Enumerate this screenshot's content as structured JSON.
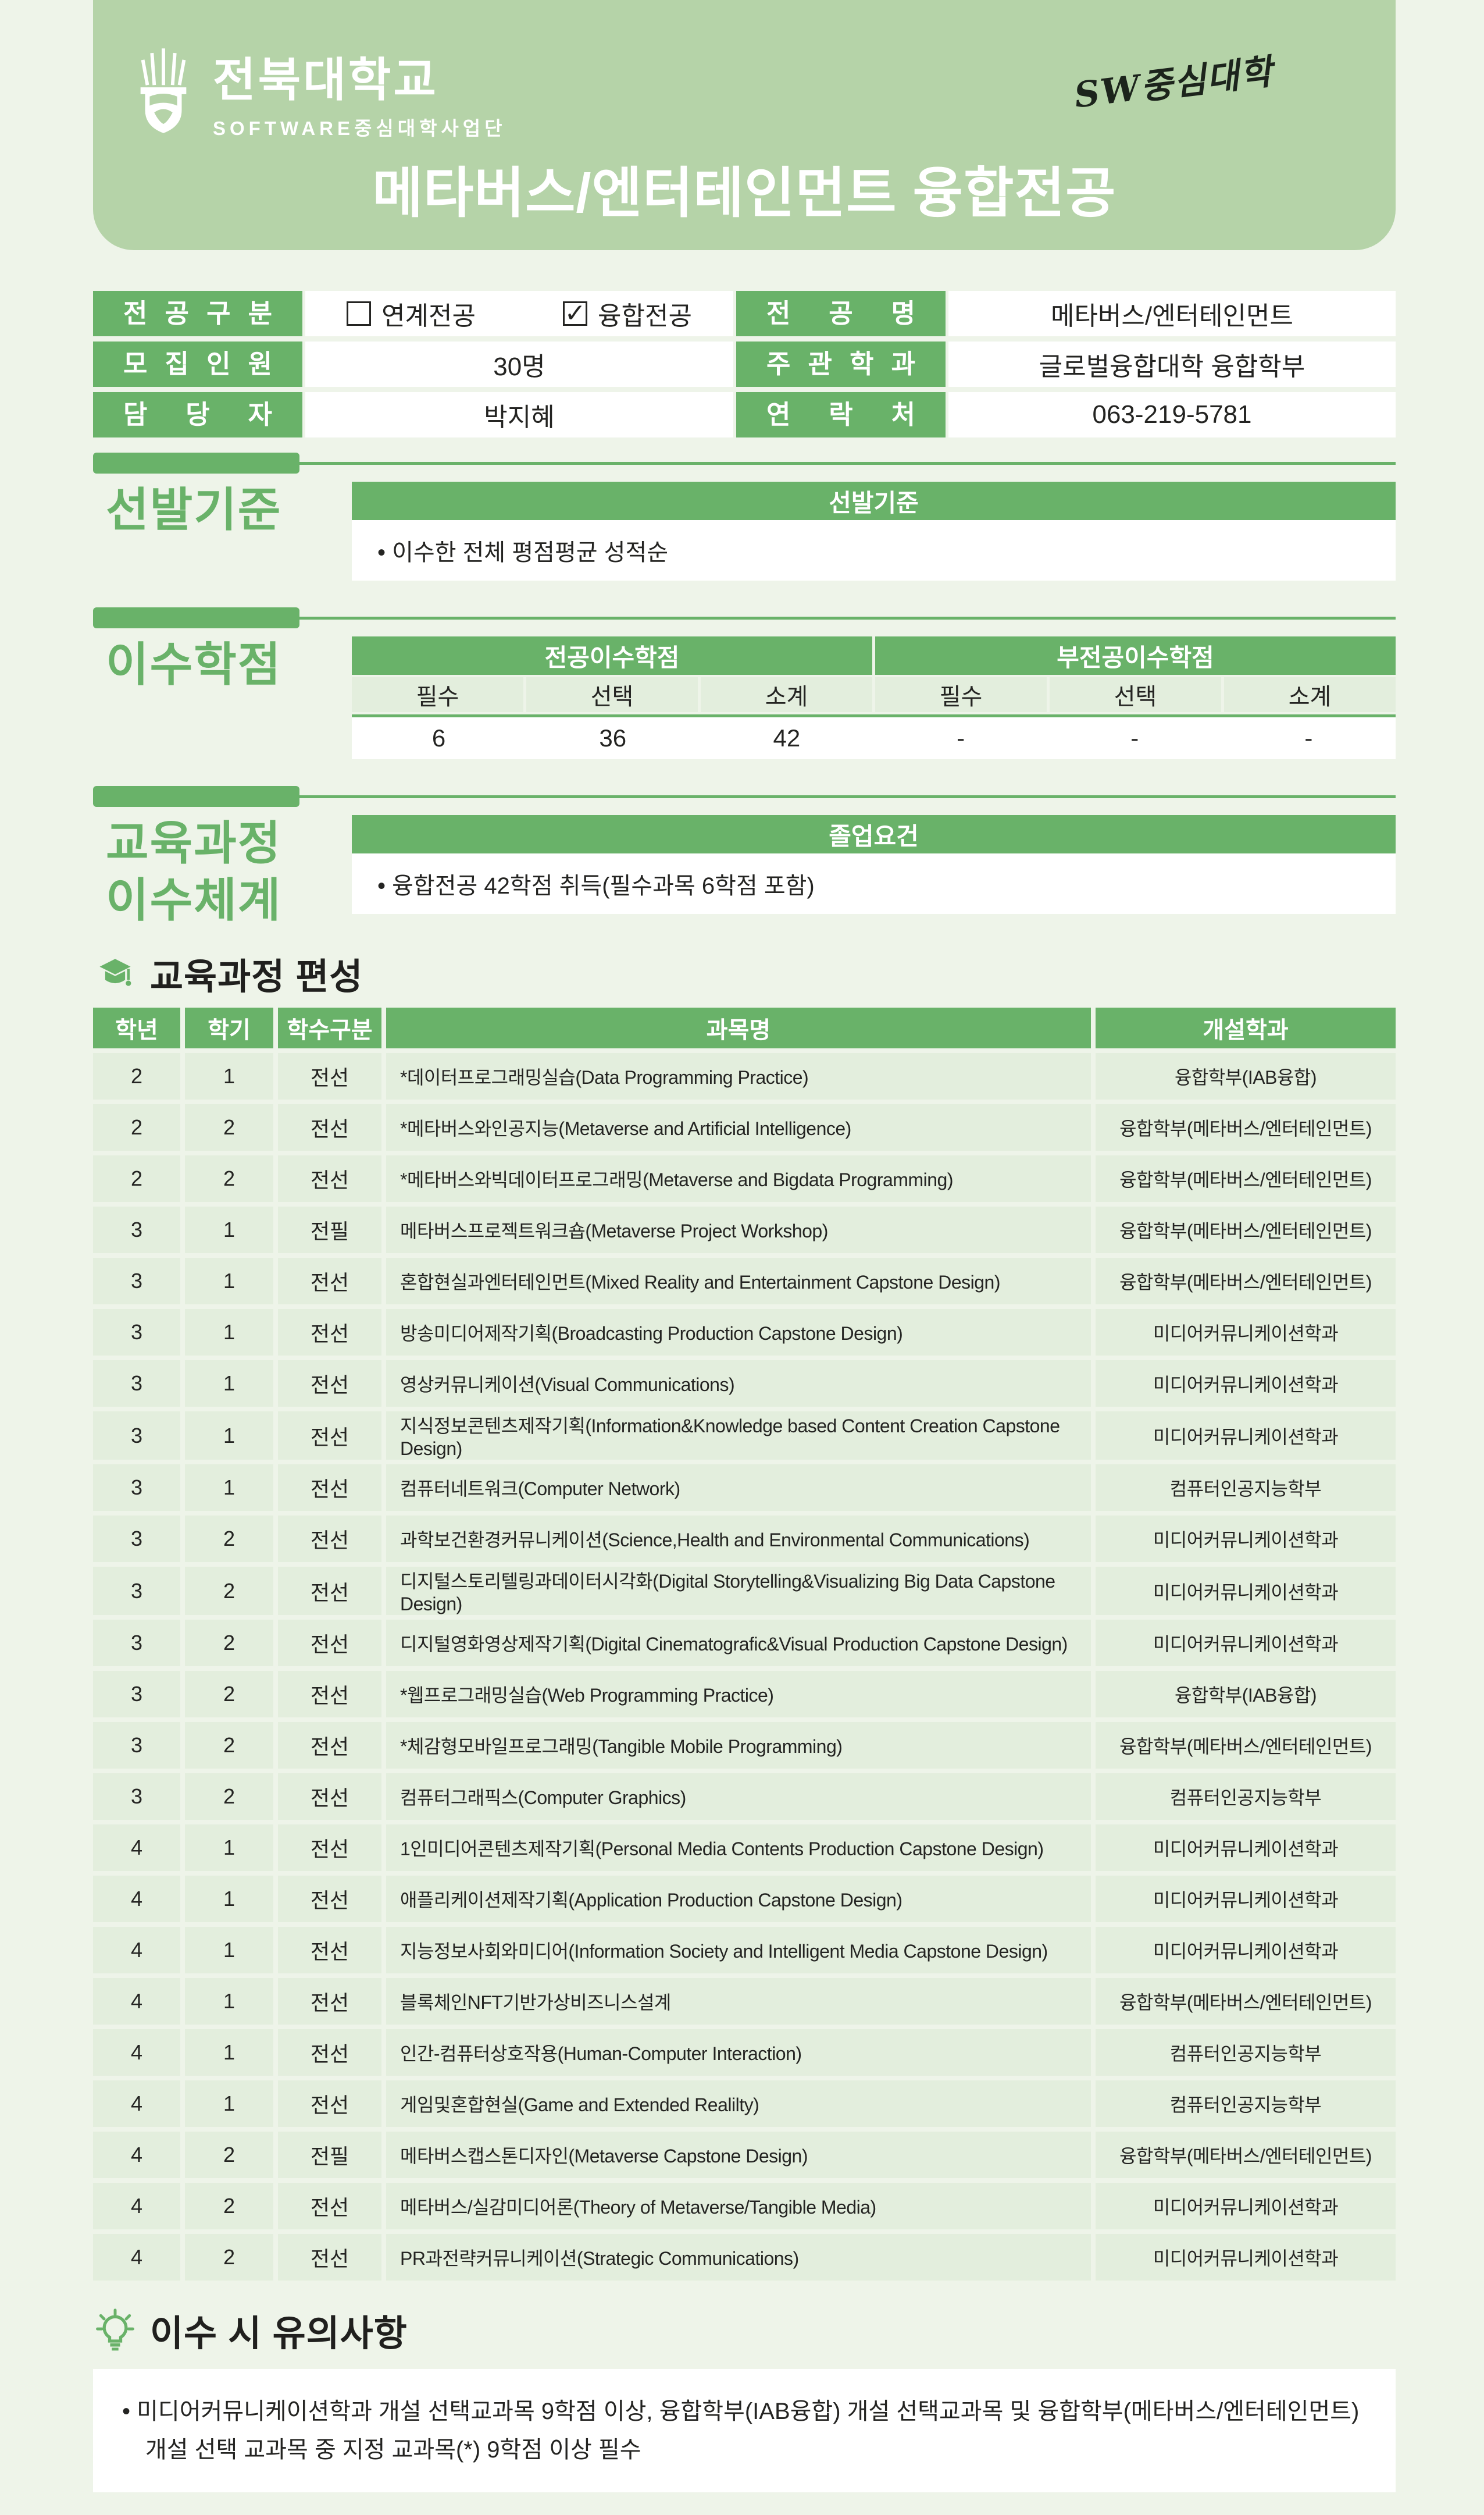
{
  "colors": {
    "accent_green": "#69b269",
    "banner_green": "#b5d3a8",
    "row_green": "#e3eedd",
    "page_bg": "#eef4e9",
    "text_dark": "#242422"
  },
  "banner": {
    "university": "전북대학교",
    "subtitle": "SOFTWARE중심대학사업단",
    "sw_logo": "SW중심대학",
    "title": "메타버스/엔터테인먼트 융합전공"
  },
  "info": {
    "rows": [
      {
        "label": "전 공 구 분",
        "value_type": "checkboxes",
        "checkboxes": [
          {
            "checked": false,
            "text": "연계전공"
          },
          {
            "checked": true,
            "text": "융합전공"
          }
        ],
        "label2": "전 공 명",
        "value2": "메타버스/엔터테인먼트"
      },
      {
        "label": "모 집 인 원",
        "value": "30명",
        "label2": "주 관 학 과",
        "value2": "글로벌융합대학 융합학부"
      },
      {
        "label": "담 당 자",
        "value": "박지혜",
        "label2": "연 락 처",
        "value2": "063-219-5781"
      }
    ]
  },
  "selection": {
    "title": "선발기준",
    "table_header": "선발기준",
    "bullet": "• 이수한 전체 평점평균 성적순"
  },
  "credits": {
    "title": "이수학점",
    "groups": [
      "전공이수학점",
      "부전공이수학점"
    ],
    "columns": [
      "필수",
      "선택",
      "소계",
      "필수",
      "선택",
      "소계"
    ],
    "values": [
      "6",
      "36",
      "42",
      "-",
      "-",
      "-"
    ]
  },
  "curriculum": {
    "title_line1": "교육과정",
    "title_line2": "이수체계",
    "table_header": "졸업요건",
    "bullet": "• 융합전공 42학점 취득(필수과목 6학점 포함)"
  },
  "composition": {
    "heading": "교육과정 편성",
    "columns": [
      "학년",
      "학기",
      "학수구분",
      "과목명",
      "개설학과"
    ],
    "rows": [
      [
        "2",
        "1",
        "전선",
        "*데이터프로그래밍실습(Data Programming Practice)",
        "융합학부(IAB융합)"
      ],
      [
        "2",
        "2",
        "전선",
        "*메타버스와인공지능(Metaverse and Artificial Intelligence)",
        "융합학부(메타버스/엔터테인먼트)"
      ],
      [
        "2",
        "2",
        "전선",
        "*메타버스와빅데이터프로그래밍(Metaverse and Bigdata Programming)",
        "융합학부(메타버스/엔터테인먼트)"
      ],
      [
        "3",
        "1",
        "전필",
        "메타버스프로젝트워크숍(Metaverse Project Workshop)",
        "융합학부(메타버스/엔터테인먼트)"
      ],
      [
        "3",
        "1",
        "전선",
        "혼합현실과엔터테인먼트(Mixed Reality and Entertainment Capstone Design)",
        "융합학부(메타버스/엔터테인먼트)"
      ],
      [
        "3",
        "1",
        "전선",
        "방송미디어제작기획(Broadcasting Production Capstone Design)",
        "미디어커뮤니케이션학과"
      ],
      [
        "3",
        "1",
        "전선",
        "영상커뮤니케이션(Visual Communications)",
        "미디어커뮤니케이션학과"
      ],
      [
        "3",
        "1",
        "전선",
        "지식정보콘텐츠제작기획(Information&Knowledge based Content Creation Capstone Design)",
        "미디어커뮤니케이션학과"
      ],
      [
        "3",
        "1",
        "전선",
        "컴퓨터네트워크(Computer Network)",
        "컴퓨터인공지능학부"
      ],
      [
        "3",
        "2",
        "전선",
        "과학보건환경커뮤니케이션(Science,Health and Environmental Communications)",
        "미디어커뮤니케이션학과"
      ],
      [
        "3",
        "2",
        "전선",
        "디지털스토리텔링과데이터시각화(Digital Storytelling&Visualizing Big Data Capstone Design)",
        "미디어커뮤니케이션학과"
      ],
      [
        "3",
        "2",
        "전선",
        "디지털영화영상제작기획(Digital Cinematografic&Visual Production Capstone Design)",
        "미디어커뮤니케이션학과"
      ],
      [
        "3",
        "2",
        "전선",
        "*웹프로그래밍실습(Web Programming Practice)",
        "융합학부(IAB융합)"
      ],
      [
        "3",
        "2",
        "전선",
        "*체감형모바일프로그래밍(Tangible Mobile Programming)",
        "융합학부(메타버스/엔터테인먼트)"
      ],
      [
        "3",
        "2",
        "전선",
        "컴퓨터그래픽스(Computer Graphics)",
        "컴퓨터인공지능학부"
      ],
      [
        "4",
        "1",
        "전선",
        "1인미디어콘텐츠제작기획(Personal Media Contents Production Capstone Design)",
        "미디어커뮤니케이션학과"
      ],
      [
        "4",
        "1",
        "전선",
        "애플리케이션제작기획(Application Production Capstone Design)",
        "미디어커뮤니케이션학과"
      ],
      [
        "4",
        "1",
        "전선",
        "지능정보사회와미디어(Information Society and Intelligent Media Capstone Design)",
        "미디어커뮤니케이션학과"
      ],
      [
        "4",
        "1",
        "전선",
        "블록체인NFT기반가상비즈니스설계",
        "융합학부(메타버스/엔터테인먼트)"
      ],
      [
        "4",
        "1",
        "전선",
        "인간-컴퓨터상호작용(Human-Computer Interaction)",
        "컴퓨터인공지능학부"
      ],
      [
        "4",
        "1",
        "전선",
        "게임및혼합현실(Game and Extended Realilty)",
        "컴퓨터인공지능학부"
      ],
      [
        "4",
        "2",
        "전필",
        "메타버스캡스톤디자인(Metaverse Capstone Design)",
        "융합학부(메타버스/엔터테인먼트)"
      ],
      [
        "4",
        "2",
        "전선",
        "메타버스/실감미디어론(Theory of Metaverse/Tangible Media)",
        "미디어커뮤니케이션학과"
      ],
      [
        "4",
        "2",
        "전선",
        "PR과전략커뮤니케이션(Strategic Communications)",
        "미디어커뮤니케이션학과"
      ]
    ]
  },
  "notes": {
    "heading": "이수 시 유의사항",
    "text": "• 미디어커뮤니케이션학과 개설 선택교과목 9학점 이상, 융합학부(IAB융합) 개설 선택교과목 및 융합학부(메타버스/엔터테인먼트) 개설 선택 교과목 중 지정 교과목(*) 9학점 이상 필수"
  }
}
